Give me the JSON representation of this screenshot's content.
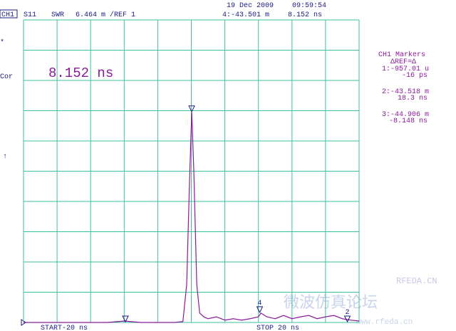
{
  "chart_data": {
    "type": "line",
    "channel": "CH1",
    "parameter": "S11",
    "format": "SWR",
    "scale": "6.464 m /REF 1",
    "date": "19 Dec 2009",
    "time": "09:59:54",
    "active_marker": "4:-43.501 m",
    "active_marker_time": "8.152 ns",
    "left_labels": [
      "*",
      "Cor",
      "↑"
    ],
    "big_readout": "8.152 ns",
    "marker_panel": [
      "CH1 Markers",
      "ΔREF=Δ",
      "1:-957.01 u",
      "-16 ps",
      "2:-43.518 m",
      "18.3 ns",
      "3:-44.906 m",
      "-8.148 ns"
    ],
    "start_label": "START-20 ns",
    "stop_label": "STOP 20 ns",
    "watermarks": [
      "RFEDA.CN",
      "微波仿真论坛",
      "www.rfeda.cn"
    ],
    "xlim": [
      -20,
      20
    ],
    "ylim": [
      1,
      1.06464
    ],
    "grid": true,
    "x": [
      -20,
      -10,
      -8,
      -6,
      -2,
      -1,
      -0.55,
      -0.2,
      0.05,
      0.3,
      0.65,
      1.0,
      1.5,
      2,
      3,
      4,
      5,
      6,
      7,
      8,
      8.3,
      9,
      10,
      11,
      12,
      13,
      14,
      15,
      16,
      17,
      18,
      19,
      20
    ],
    "series": [
      {
        "name": "S11",
        "color": "#8a1a9a",
        "values": [
          1,
          1,
          1.0003,
          1,
          1,
          1.0002,
          1.0081,
          1.0309,
          1.0449,
          1.0324,
          1.0081,
          1.002,
          1.0012,
          1.0008,
          1.0012,
          1.0005,
          1.0008,
          1.0005,
          1.0008,
          1.0012,
          1.002,
          1.0012,
          1.0008,
          1.0015,
          1.0008,
          1.0012,
          1.0015,
          1.0008,
          1.0012,
          1.0015,
          1.0008,
          1.0005,
          1.0003
        ]
      }
    ],
    "markers": [
      {
        "x": -7.85,
        "y": 1
      },
      {
        "x": 0.05,
        "y": 1.0449
      },
      {
        "label": "4",
        "x": 8.152,
        "y": 1.002
      },
      {
        "label": "2",
        "x": 18.6,
        "y": 1
      }
    ]
  }
}
